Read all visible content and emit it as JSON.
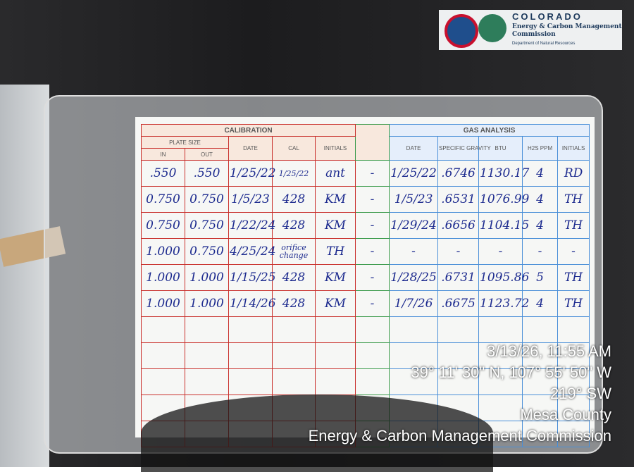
{
  "logo": {
    "name": "COLORADO",
    "agency": "Energy & Carbon Management",
    "agency2": "Commission",
    "department": "Department of Natural Resources"
  },
  "card": {
    "calibration": "CALIBRATION",
    "plate_size": "PLATE SIZE",
    "gas_analysis": "GAS ANALYSIS",
    "cal_columns": [
      "IN",
      "OUT",
      "DATE",
      "CAL",
      "INITIALS"
    ],
    "gas_columns": [
      "DATE",
      "SPECIFIC GRAVITY",
      "BTU",
      "H2S PPM",
      "INITIALS"
    ],
    "rows": [
      [
        ".550",
        ".550",
        "1/25/22",
        "1/25/22",
        "ant",
        "-",
        "1/25/22",
        ".6746",
        "1130.17",
        "4",
        "RD"
      ],
      [
        "0.750",
        "0.750",
        "1/5/23",
        "428",
        "KM",
        "-",
        "1/5/23",
        ".6531",
        "1076.99",
        "4",
        "TH"
      ],
      [
        "0.750",
        "0.750",
        "1/22/24",
        "428",
        "KM",
        "-",
        "1/29/24",
        ".6656",
        "1104.15",
        "4",
        "TH"
      ],
      [
        "1.000",
        "0.750",
        "4/25/24",
        "orifice change",
        "TH",
        "-",
        "-",
        "-",
        "-",
        "-",
        "-"
      ],
      [
        "1.000",
        "1.000",
        "1/15/25",
        "428",
        "KM",
        "-",
        "1/28/25",
        ".6731",
        "1095.86",
        "5",
        "TH"
      ],
      [
        "1.000",
        "1.000",
        "1/14/26",
        "428",
        "KM",
        "-",
        "1/7/26",
        ".6675",
        "1123.72",
        "4",
        "TH"
      ]
    ]
  },
  "stamp": {
    "datetime": "3/13/26, 11:55 AM",
    "coordinates": "39° 11' 30\" N, 107° 55' 50\" W",
    "heading": "219° SW",
    "county": "Mesa County",
    "agency": "Energy & Carbon Management Commission"
  }
}
